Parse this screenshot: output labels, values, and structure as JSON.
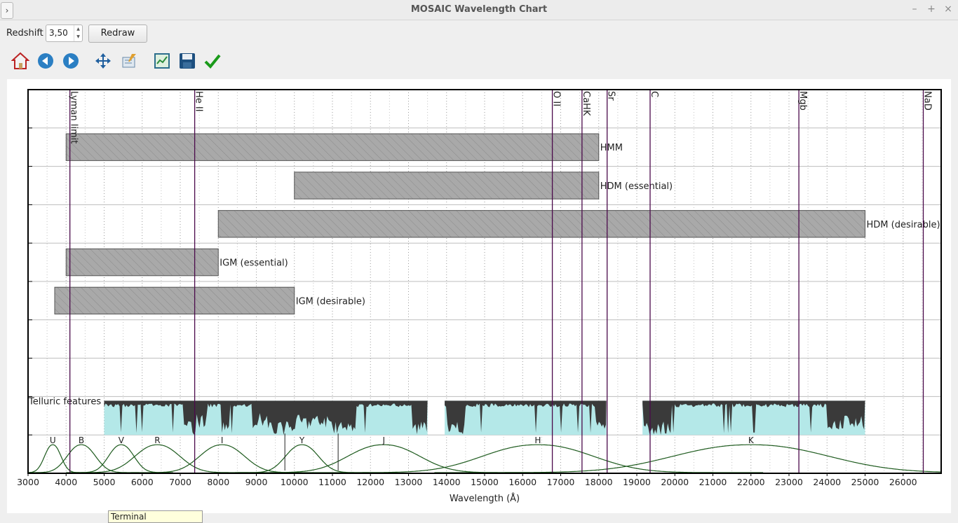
{
  "window": {
    "title": "MOSAIC Wavelength Chart",
    "side_toggle": "›",
    "minimize": "–",
    "maximize": "+",
    "close": "×"
  },
  "controls": {
    "redshift_label": "Redshift",
    "redshift_value": "3,50",
    "redraw_label": "Redraw"
  },
  "toolbar": [
    {
      "name": "home-icon",
      "label": "Home"
    },
    {
      "name": "back-icon",
      "label": "Back"
    },
    {
      "name": "forward-icon",
      "label": "Forward"
    },
    {
      "name": "pan-icon",
      "label": "Pan"
    },
    {
      "name": "edit-icon",
      "label": "Edit"
    },
    {
      "name": "zoom-fit-icon",
      "label": "Zoom"
    },
    {
      "name": "save-icon",
      "label": "Save"
    },
    {
      "name": "check-icon",
      "label": "Apply"
    }
  ],
  "tooltip": "Terminal",
  "colors": {
    "bar_fill": "#a9a9a9",
    "bar_edge": "#555555",
    "line": "#4b0a4b",
    "telluric_fill": "#b4e8e8",
    "telluric_abs": "#3a3a3a",
    "filter_curve": "#1d5a1d"
  },
  "chart_data": {
    "type": "bar",
    "orientation": "horizontal",
    "xlabel": "Wavelength (Å)",
    "ylabel": "",
    "xlim": [
      3000,
      27000
    ],
    "ylim": [
      0,
      10
    ],
    "grid": true,
    "x_ticks": [
      3000,
      4000,
      5000,
      6000,
      7000,
      8000,
      9000,
      10000,
      11000,
      12000,
      13000,
      14000,
      15000,
      16000,
      17000,
      18000,
      19000,
      20000,
      21000,
      22000,
      23000,
      24000,
      25000,
      26000
    ],
    "ranges": [
      {
        "name": "HMM",
        "start": 4000,
        "end": 18000,
        "y": 8
      },
      {
        "name": "HDM (essential)",
        "start": 10000,
        "end": 18000,
        "y": 7
      },
      {
        "name": "HDM (desirable)",
        "start": 8000,
        "end": 25000,
        "y": 6
      },
      {
        "name": "IGM (essential)",
        "start": 4000,
        "end": 8000,
        "y": 5
      },
      {
        "name": "IGM (desirable)",
        "start": 3700,
        "end": 10000,
        "y": 4
      }
    ],
    "lines": [
      {
        "name": "Lyman limit",
        "x": 4100
      },
      {
        "name": "He II",
        "x": 7380
      },
      {
        "name": "O II",
        "x": 16780
      },
      {
        "name": "CaHK",
        "x": 17560
      },
      {
        "name": "Sr",
        "x": 18220
      },
      {
        "name": "C",
        "x": 19350
      },
      {
        "name": "Mgb",
        "x": 23260
      },
      {
        "name": "NaD",
        "x": 26530
      }
    ],
    "telluric": {
      "label": "Telluric features",
      "segments": [
        [
          5000,
          13500
        ],
        [
          13950,
          18200
        ],
        [
          19150,
          25000
        ]
      ]
    },
    "filters": [
      {
        "name": "U",
        "center": 3650,
        "width": 550
      },
      {
        "name": "B",
        "center": 4400,
        "width": 950
      },
      {
        "name": "V",
        "center": 5450,
        "width": 850
      },
      {
        "name": "R",
        "center": 6400,
        "width": 1500
      },
      {
        "name": "I",
        "center": 8100,
        "width": 1500
      },
      {
        "name": "Y",
        "center": 10200,
        "width": 1100
      },
      {
        "name": "J",
        "center": 12350,
        "width": 2400
      },
      {
        "name": "H",
        "center": 16400,
        "width": 3700
      },
      {
        "name": "K",
        "center": 22000,
        "width": 5200
      }
    ]
  }
}
